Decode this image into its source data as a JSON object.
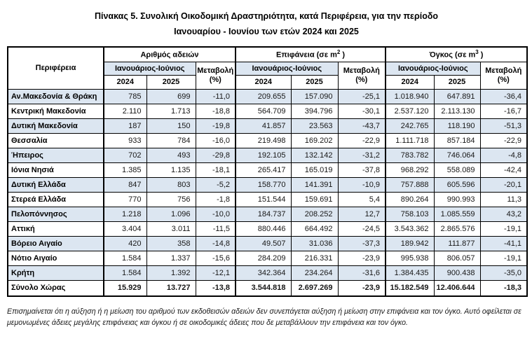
{
  "title": {
    "line1": "Πίνακας 5. Συνολική Οικοδομική Δραστηριότητα, κατά Περιφέρεια, για την περίοδο",
    "line2": "Ιανουαρίου - Ιουνίου των ετών 2024 και 2025"
  },
  "table": {
    "headers": {
      "region": "Περιφέρεια",
      "groups": [
        {
          "prefix": "Αριθμός αδειών",
          "sup": "",
          "suffix": ""
        },
        {
          "prefix": "Επιφάνεια (σε m",
          "sup": "2",
          "suffix": " )"
        },
        {
          "prefix": "Όγκος (σε m",
          "sup": "3",
          "suffix": " )"
        }
      ],
      "period": "Ιανουάριος-Ιούνιος",
      "change_line1": "Μεταβολή",
      "change_line2": "(%)",
      "year1": "2024",
      "year2": "2025"
    },
    "rows": [
      {
        "region": "Αν.Μακεδονία & Θράκη",
        "values": [
          "785",
          "699",
          "-11,0",
          "209.655",
          "157.090",
          "-25,1",
          "1.018.940",
          "647.891",
          "-36,4"
        ]
      },
      {
        "region": "Κεντρική Μακεδονία",
        "values": [
          "2.110",
          "1.713",
          "-18,8",
          "564.709",
          "394.796",
          "-30,1",
          "2.537.120",
          "2.113.130",
          "-16,7"
        ]
      },
      {
        "region": "Δυτική Μακεδονία",
        "values": [
          "187",
          "150",
          "-19,8",
          "41.857",
          "23.563",
          "-43,7",
          "242.765",
          "118.190",
          "-51,3"
        ]
      },
      {
        "region": "Θεσσαλία",
        "values": [
          "933",
          "784",
          "-16,0",
          "219.498",
          "169.202",
          "-22,9",
          "1.111.718",
          "857.184",
          "-22,9"
        ]
      },
      {
        "region": "Ήπειρος",
        "values": [
          "702",
          "493",
          "-29,8",
          "192.105",
          "132.142",
          "-31,2",
          "783.782",
          "746.064",
          "-4,8"
        ]
      },
      {
        "region": "Ιόνια Νησιά",
        "values": [
          "1.385",
          "1.135",
          "-18,1",
          "265.417",
          "165.019",
          "-37,8",
          "968.292",
          "558.089",
          "-42,4"
        ]
      },
      {
        "region": "Δυτική Ελλάδα",
        "values": [
          "847",
          "803",
          "-5,2",
          "158.770",
          "141.391",
          "-10,9",
          "757.888",
          "605.596",
          "-20,1"
        ]
      },
      {
        "region": "Στερεά Ελλάδα",
        "values": [
          "770",
          "756",
          "-1,8",
          "151.544",
          "159.691",
          "5,4",
          "890.264",
          "990.993",
          "11,3"
        ]
      },
      {
        "region": "Πελοπόννησος",
        "values": [
          "1.218",
          "1.096",
          "-10,0",
          "184.737",
          "208.252",
          "12,7",
          "758.103",
          "1.085.559",
          "43,2"
        ]
      },
      {
        "region": "Αττική",
        "values": [
          "3.404",
          "3.011",
          "-11,5",
          "880.446",
          "664.492",
          "-24,5",
          "3.543.362",
          "2.865.576",
          "-19,1"
        ]
      },
      {
        "region": "Βόρειο Αιγαίο",
        "values": [
          "420",
          "358",
          "-14,8",
          "49.507",
          "31.036",
          "-37,3",
          "189.942",
          "111.877",
          "-41,1"
        ]
      },
      {
        "region": "Νότιο Αιγαίο",
        "values": [
          "1.584",
          "1.337",
          "-15,6",
          "284.209",
          "216.331",
          "-23,9",
          "995.938",
          "806.057",
          "-19,1"
        ]
      },
      {
        "region": "Κρήτη",
        "values": [
          "1.584",
          "1.392",
          "-12,1",
          "342.364",
          "234.264",
          "-31,6",
          "1.384.435",
          "900.438",
          "-35,0"
        ]
      }
    ],
    "total": {
      "region": "Σύνολο Χώρας",
      "values": [
        "15.929",
        "13.727",
        "-13,8",
        "3.544.818",
        "2.697.269",
        "-23,9",
        "15.182.549",
        "12.406.644",
        "-18,3"
      ]
    }
  },
  "footnote": "Επισημαίνεται ότι η αύξηση ή η μείωση του αριθμού των εκδοθεισών αδειών δεν συνεπάγεται αύξηση ή μείωση στην επιφάνεια και τον όγκο. Αυτό οφείλεται σε μεμονωμένες άδειες μεγάλης επιφάνειας και όγκου ή σε οικοδομικές άδειες που δε μεταβάλλουν την επιφάνεια και τον όγκο."
}
